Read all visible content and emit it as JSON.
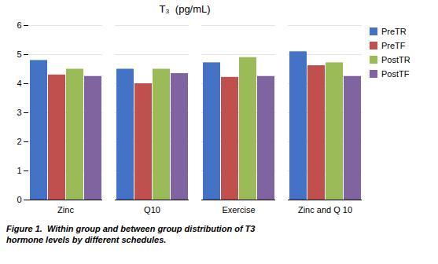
{
  "chart_data": {
    "type": "bar",
    "title": "T₃  (pg/mL)",
    "categories": [
      "Zinc",
      "Q10",
      "Exercise",
      "Zinc and Q 10"
    ],
    "series": [
      {
        "name": "PreTR",
        "color": "#4472C4",
        "values": [
          4.8,
          4.5,
          4.72,
          5.1
        ]
      },
      {
        "name": "PreTF",
        "color": "#C0504D",
        "values": [
          4.3,
          4.0,
          4.22,
          4.62
        ]
      },
      {
        "name": "PostTR",
        "color": "#9BBB59",
        "values": [
          4.5,
          4.5,
          4.9,
          4.72
        ]
      },
      {
        "name": "PostTF",
        "color": "#8064A2",
        "values": [
          4.25,
          4.35,
          4.25,
          4.25
        ]
      }
    ],
    "ylim": [
      0,
      6
    ],
    "yticks": [
      0,
      1,
      2,
      3,
      4,
      5,
      6
    ],
    "grid": true,
    "legend": "right",
    "caption": [
      "Figure 1.  Within group and between group distribution of T3",
      "hormone levels by different schedules."
    ]
  }
}
